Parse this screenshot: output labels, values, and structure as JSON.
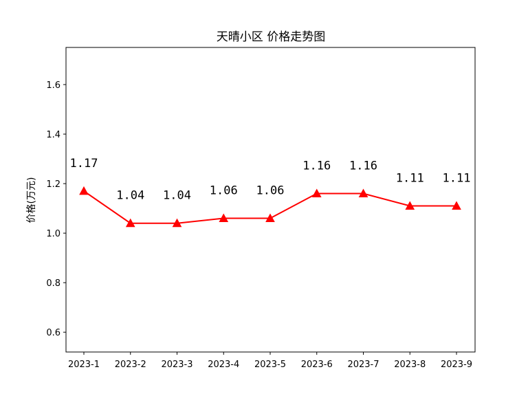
{
  "chart_data": {
    "type": "line",
    "title": "天晴小区 价格走势图",
    "xlabel": "",
    "ylabel": "价格(万元)",
    "categories": [
      "2023-1",
      "2023-2",
      "2023-3",
      "2023-4",
      "2023-5",
      "2023-6",
      "2023-7",
      "2023-8",
      "2023-9"
    ],
    "series": [
      {
        "values": [
          1.17,
          1.04,
          1.04,
          1.06,
          1.06,
          1.16,
          1.16,
          1.11,
          1.11
        ],
        "color": "#ff0000",
        "marker": "triangle"
      }
    ],
    "data_labels": [
      "1.17",
      "1.04",
      "1.04",
      "1.06",
      "1.06",
      "1.16",
      "1.16",
      "1.11",
      "1.11"
    ],
    "yticks": [
      0.6,
      0.8,
      1.0,
      1.2,
      1.4,
      1.6
    ],
    "ytick_labels": [
      "0.6",
      "0.8",
      "1.0",
      "1.2",
      "1.4",
      "1.6"
    ],
    "ylim": [
      0.52,
      1.75
    ],
    "grid": false
  }
}
